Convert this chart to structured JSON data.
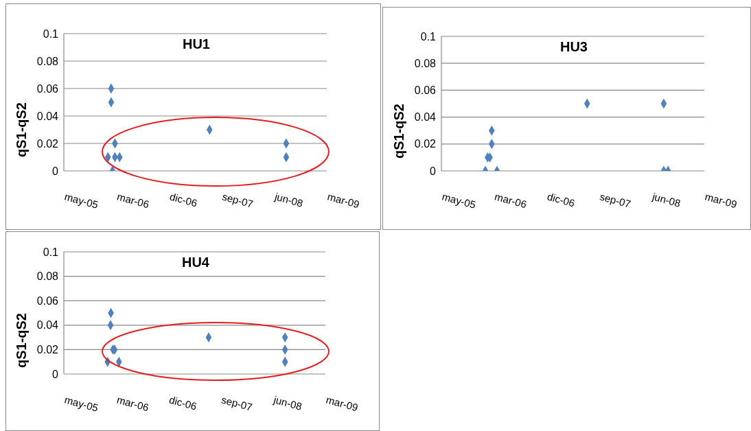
{
  "chart_data": [
    {
      "type": "scatter",
      "title": "HU1",
      "ylabel": "qS1-qS2",
      "marker": "diamond",
      "grid": "y",
      "xlim": [
        "2005-05-31",
        "2009-03-31"
      ],
      "xticks": [
        {
          "value": "2005-05-31",
          "label": "may-05"
        },
        {
          "value": "2006-03-07",
          "label": "mar-06"
        },
        {
          "value": "2006-12-12",
          "label": "dic-06"
        },
        {
          "value": "2007-09-18",
          "label": "sep-07"
        },
        {
          "value": "2008-06-24",
          "label": "jun-08"
        },
        {
          "value": "2009-03-31",
          "label": "mar-09"
        }
      ],
      "ylim": [
        0,
        0.1
      ],
      "yticks": [
        0,
        0.02,
        0.04,
        0.06,
        0.08,
        0.1
      ],
      "series": [
        {
          "color": "#4f81bd",
          "x": [
            "2006-02-07",
            "2006-02-07",
            "2006-01-21",
            "2006-02-14",
            "2006-02-27",
            "2006-02-27",
            "2006-03-24",
            "2007-07-16",
            "2008-08-27",
            "2008-08-27"
          ],
          "values": [
            0.06,
            0.05,
            0.01,
            0,
            0.02,
            0.01,
            0.01,
            0.03,
            0.02,
            0.01
          ]
        }
      ]
    },
    {
      "type": "scatter",
      "title": "HU3",
      "ylabel": "qS1-qS2",
      "marker": "diamond",
      "grid": "y",
      "xlim": [
        "2005-05-31",
        "2009-03-31"
      ],
      "xticks": [
        {
          "value": "2005-05-31",
          "label": "may-05"
        },
        {
          "value": "2006-03-07",
          "label": "mar-06"
        },
        {
          "value": "2006-12-12",
          "label": "dic-06"
        },
        {
          "value": "2007-09-18",
          "label": "sep-07"
        },
        {
          "value": "2008-06-24",
          "label": "jun-08"
        },
        {
          "value": "2009-03-31",
          "label": "mar-09"
        }
      ],
      "ylim": [
        0,
        0.1
      ],
      "yticks": [
        0,
        0.02,
        0.04,
        0.06,
        0.08,
        0.1
      ],
      "series": [
        {
          "color": "#4f81bd",
          "x": [
            "2006-01-20",
            "2006-02-01",
            "2006-02-13",
            "2006-02-23",
            "2006-02-23",
            "2006-03-23",
            "2007-07-16",
            "2008-08-27",
            "2008-08-27",
            "2008-09-19"
          ],
          "values": [
            0,
            0.01,
            0.01,
            0.03,
            0.02,
            0,
            0.05,
            0.05,
            0,
            0
          ]
        }
      ]
    },
    {
      "type": "scatter",
      "title": "HU4",
      "ylabel": "qS1-qS2",
      "marker": "diamond",
      "grid": "y",
      "xlim": [
        "2005-05-31",
        "2009-03-31"
      ],
      "xticks": [
        {
          "value": "2005-05-31",
          "label": "may-05"
        },
        {
          "value": "2006-03-07",
          "label": "mar-06"
        },
        {
          "value": "2006-12-12",
          "label": "dic-06"
        },
        {
          "value": "2007-09-18",
          "label": "sep-07"
        },
        {
          "value": "2008-06-24",
          "label": "jun-08"
        },
        {
          "value": "2009-03-31",
          "label": "mar-09"
        }
      ],
      "ylim": [
        0,
        0.1
      ],
      "yticks": [
        0,
        0.02,
        0.04,
        0.06,
        0.08,
        0.1
      ],
      "series": [
        {
          "color": "#4f81bd",
          "x": [
            "2006-02-07",
            "2006-02-05",
            "2006-01-20",
            "2006-02-18",
            "2006-02-27",
            "2006-03-22",
            "2007-07-15",
            "2008-08-27",
            "2008-08-27",
            "2008-08-27"
          ],
          "values": [
            0.05,
            0.04,
            0.01,
            0.02,
            0.02,
            0.01,
            0.03,
            0.03,
            0.02,
            0.01
          ]
        }
      ]
    }
  ]
}
